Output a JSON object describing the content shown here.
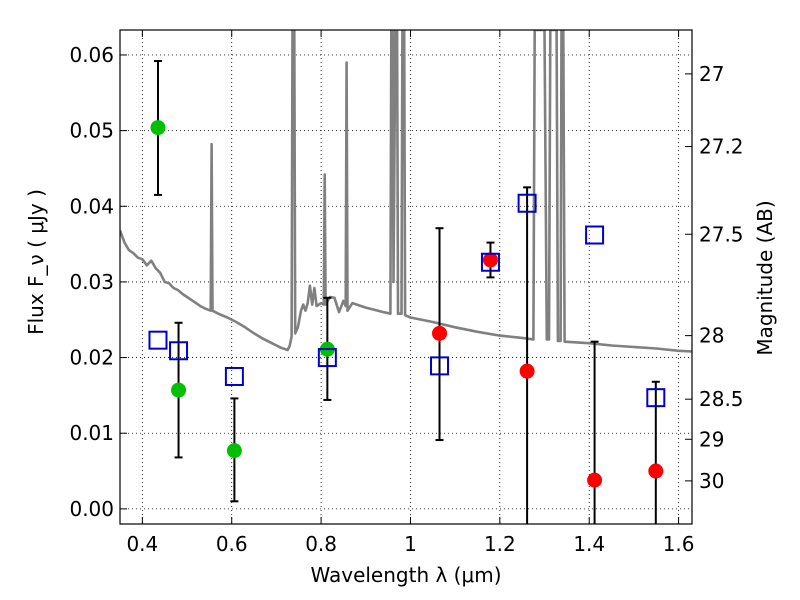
{
  "chart_data": {
    "type": "scatter",
    "xlabel": "Wavelength  λ (μm)",
    "ylabel": "Flux  F_ν  ( μJy )",
    "ylabel_right": "Magnitude (AB)",
    "xlim": [
      0.35,
      1.63
    ],
    "ylim": [
      -0.002,
      0.0633
    ],
    "grid": true,
    "x_ticks": [
      0.4,
      0.6,
      0.8,
      1.0,
      1.2,
      1.4,
      1.6
    ],
    "x_tick_labels": [
      "0.4",
      "0.6",
      "0.8",
      "1",
      "1.2",
      "1.4",
      "1.6"
    ],
    "y_ticks": [
      0.0,
      0.01,
      0.02,
      0.03,
      0.04,
      0.05,
      0.06
    ],
    "y_tick_labels": [
      "0.00",
      "0.01",
      "0.02",
      "0.03",
      "0.04",
      "0.05",
      "0.06"
    ],
    "right_ticks": [
      {
        "label": "27",
        "flux": 0.0575
      },
      {
        "label": "27.2",
        "flux": 0.0479
      },
      {
        "label": "27.5",
        "flux": 0.0363
      },
      {
        "label": "28",
        "flux": 0.0229
      },
      {
        "label": "28.5",
        "flux": 0.0145
      },
      {
        "label": "29",
        "flux": 0.0092
      },
      {
        "label": "30",
        "flux": 0.0037
      }
    ],
    "series": [
      {
        "marker": "circle-filled",
        "color": "#00c000",
        "points": [
          {
            "x": 0.435,
            "y": 0.0504,
            "ylo": 0.0415,
            "yhi": 0.0592
          },
          {
            "x": 0.481,
            "y": 0.0157,
            "ylo": 0.0068,
            "yhi": 0.0246
          },
          {
            "x": 0.606,
            "y": 0.0077,
            "ylo": 0.001,
            "yhi": 0.0146
          },
          {
            "x": 0.814,
            "y": 0.0211,
            "ylo": 0.0144,
            "yhi": 0.0279
          }
        ]
      },
      {
        "marker": "circle-filled",
        "color": "#ff0000",
        "points": [
          {
            "x": 1.065,
            "y": 0.0232,
            "ylo": 0.0091,
            "yhi": 0.0371
          },
          {
            "x": 1.179,
            "y": 0.0329,
            "ylo": 0.0306,
            "yhi": 0.0352
          },
          {
            "x": 1.261,
            "y": 0.0182,
            "ylo": -0.002,
            "yhi": 0.0425
          },
          {
            "x": 1.412,
            "y": 0.0038,
            "ylo": -0.002,
            "yhi": 0.0221
          },
          {
            "x": 1.549,
            "y": 0.005,
            "ylo": -0.002,
            "yhi": 0.0168
          }
        ]
      },
      {
        "marker": "square-open",
        "color": "#0000cc",
        "points": [
          {
            "x": 0.435,
            "y": 0.0223
          },
          {
            "x": 0.481,
            "y": 0.0209
          },
          {
            "x": 0.606,
            "y": 0.0175
          },
          {
            "x": 0.814,
            "y": 0.02
          },
          {
            "x": 1.065,
            "y": 0.0189
          },
          {
            "x": 1.179,
            "y": 0.0326
          },
          {
            "x": 1.261,
            "y": 0.0404
          },
          {
            "x": 1.412,
            "y": 0.0362
          },
          {
            "x": 1.549,
            "y": 0.0147
          }
        ]
      }
    ],
    "model_spectrum": {
      "color": "#808080",
      "points": [
        [
          0.35,
          0.0368
        ],
        [
          0.36,
          0.0352
        ],
        [
          0.37,
          0.0342
        ],
        [
          0.38,
          0.0338
        ],
        [
          0.39,
          0.0332
        ],
        [
          0.4,
          0.033
        ],
        [
          0.41,
          0.0322
        ],
        [
          0.42,
          0.0328
        ],
        [
          0.43,
          0.0318
        ],
        [
          0.44,
          0.0312
        ],
        [
          0.45,
          0.03
        ],
        [
          0.46,
          0.0298
        ],
        [
          0.47,
          0.0292
        ],
        [
          0.48,
          0.0289
        ],
        [
          0.49,
          0.0284
        ],
        [
          0.5,
          0.028
        ],
        [
          0.51,
          0.0276
        ],
        [
          0.52,
          0.0272
        ],
        [
          0.53,
          0.0268
        ],
        [
          0.54,
          0.0265
        ],
        [
          0.553,
          0.0262
        ],
        [
          0.555,
          0.0482
        ],
        [
          0.557,
          0.0262
        ],
        [
          0.57,
          0.0258
        ],
        [
          0.59,
          0.0253
        ],
        [
          0.61,
          0.0247
        ],
        [
          0.63,
          0.024
        ],
        [
          0.65,
          0.0232
        ],
        [
          0.67,
          0.0225
        ],
        [
          0.69,
          0.0219
        ],
        [
          0.71,
          0.0213
        ],
        [
          0.725,
          0.021
        ],
        [
          0.73,
          0.0216
        ],
        [
          0.734,
          0.0228
        ],
        [
          0.736,
          0.0633
        ],
        [
          0.74,
          0.0633
        ],
        [
          0.742,
          0.0232
        ],
        [
          0.748,
          0.024
        ],
        [
          0.755,
          0.0262
        ],
        [
          0.76,
          0.027
        ],
        [
          0.765,
          0.0262
        ],
        [
          0.77,
          0.0272
        ],
        [
          0.775,
          0.0295
        ],
        [
          0.78,
          0.027
        ],
        [
          0.785,
          0.0292
        ],
        [
          0.79,
          0.0268
        ],
        [
          0.8,
          0.0272
        ],
        [
          0.806,
          0.027
        ],
        [
          0.808,
          0.0442
        ],
        [
          0.81,
          0.027
        ],
        [
          0.82,
          0.028
        ],
        [
          0.83,
          0.0279
        ],
        [
          0.84,
          0.026
        ],
        [
          0.85,
          0.0275
        ],
        [
          0.855,
          0.0268
        ],
        [
          0.857,
          0.059
        ],
        [
          0.859,
          0.0262
        ],
        [
          0.87,
          0.0272
        ],
        [
          0.88,
          0.027
        ],
        [
          0.9,
          0.0266
        ],
        [
          0.92,
          0.0263
        ],
        [
          0.94,
          0.026
        ],
        [
          0.955,
          0.0258
        ],
        [
          0.957,
          0.0633
        ],
        [
          0.96,
          0.0633
        ],
        [
          0.962,
          0.03
        ],
        [
          0.966,
          0.0633
        ],
        [
          0.97,
          0.0633
        ],
        [
          0.972,
          0.0258
        ],
        [
          0.98,
          0.0258
        ],
        [
          0.982,
          0.0633
        ],
        [
          0.986,
          0.0633
        ],
        [
          0.988,
          0.0256
        ],
        [
          1.0,
          0.0253
        ],
        [
          1.05,
          0.0247
        ],
        [
          1.1,
          0.024
        ],
        [
          1.15,
          0.0234
        ],
        [
          1.2,
          0.0229
        ],
        [
          1.25,
          0.0226
        ],
        [
          1.275,
          0.0224
        ],
        [
          1.278,
          0.0633
        ],
        [
          1.3,
          0.0633
        ],
        [
          1.305,
          0.0224
        ],
        [
          1.31,
          0.0224
        ],
        [
          1.313,
          0.0633
        ],
        [
          1.327,
          0.0633
        ],
        [
          1.33,
          0.0222
        ],
        [
          1.336,
          0.0222
        ],
        [
          1.338,
          0.0633
        ],
        [
          1.342,
          0.0633
        ],
        [
          1.345,
          0.0221
        ],
        [
          1.4,
          0.0219
        ],
        [
          1.45,
          0.0216
        ],
        [
          1.5,
          0.0214
        ],
        [
          1.55,
          0.0212
        ],
        [
          1.6,
          0.0209
        ],
        [
          1.63,
          0.0208
        ]
      ]
    }
  }
}
